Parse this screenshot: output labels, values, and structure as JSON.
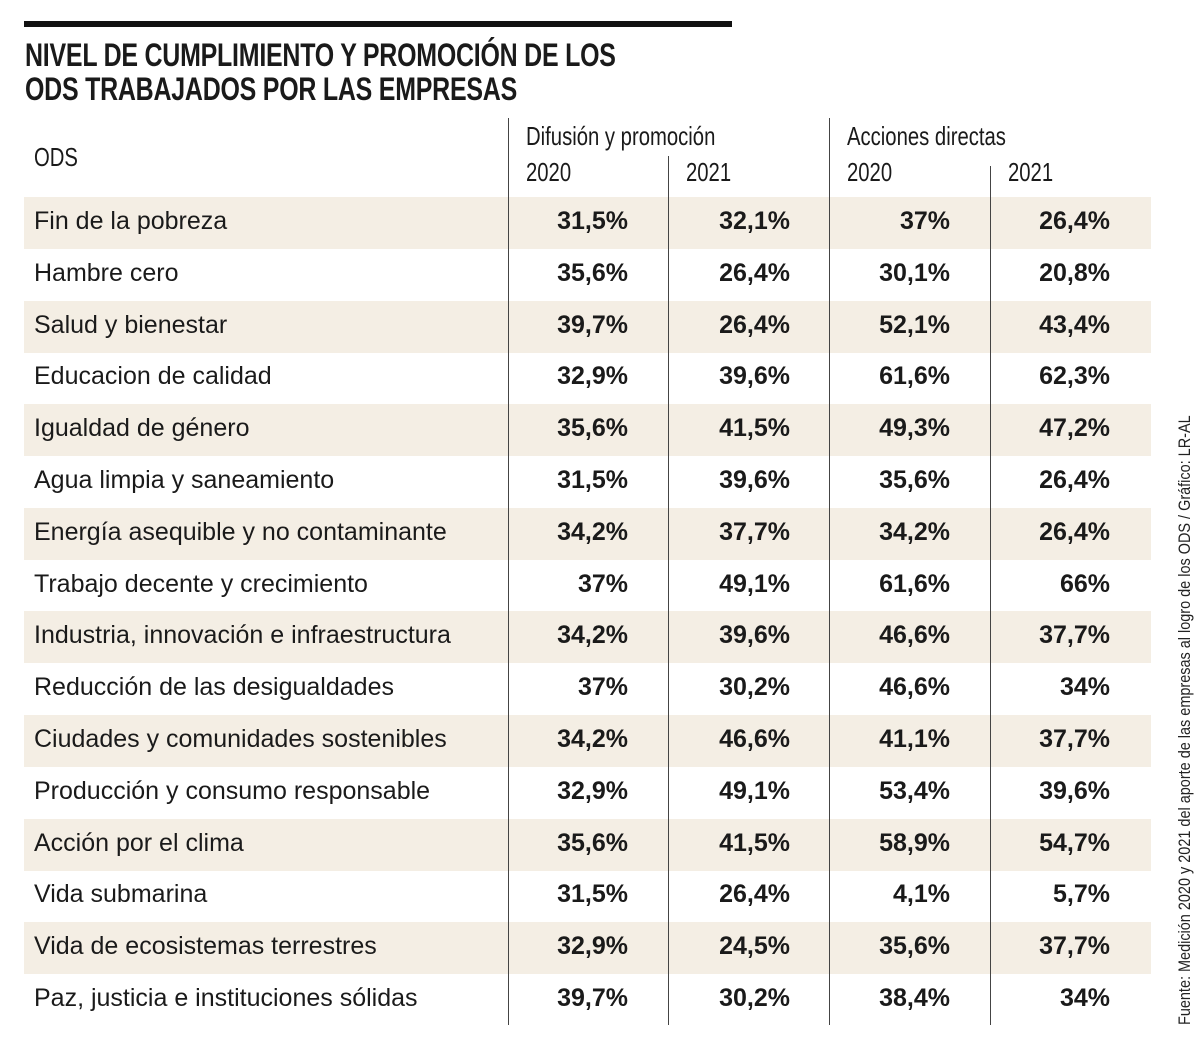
{
  "title": "NIVEL DE CUMPLIMIENTO Y PROMOCIÓN DE LOS ODS TRABAJADOS POR LAS EMPRESAS",
  "title_lines": [
    "NIVEL DE CUMPLIMIENTO Y PROMOCIÓN DE LOS",
    "ODS TRABAJADOS POR LAS EMPRESAS"
  ],
  "source": "Fuente: Medición 2020 y 2021 del aporte de las empresas al logro de los ODS / Gráfico: LR-AL",
  "colors": {
    "row_shade": "#f4eee4",
    "text": "#1a1a1a"
  },
  "chart_data": {
    "type": "table",
    "title": "NIVEL DE CUMPLIMIENTO Y PROMOCIÓN DE LOS ODS TRABAJADOS POR LAS EMPRESAS",
    "row_header": "ODS",
    "groups": [
      {
        "name": "Difusión y promoción",
        "columns": [
          "2020",
          "2021"
        ]
      },
      {
        "name": "Acciones directas",
        "columns": [
          "2020",
          "2021"
        ]
      }
    ],
    "rows": [
      {
        "ods": "Fin de la pobreza",
        "values": [
          "31,5%",
          "32,1%",
          "37%",
          "26,4%"
        ]
      },
      {
        "ods": "Hambre cero",
        "values": [
          "35,6%",
          "26,4%",
          "30,1%",
          "20,8%"
        ]
      },
      {
        "ods": "Salud y bienestar",
        "values": [
          "39,7%",
          "26,4%",
          "52,1%",
          "43,4%"
        ]
      },
      {
        "ods": "Educacion de calidad",
        "values": [
          "32,9%",
          "39,6%",
          "61,6%",
          "62,3%"
        ]
      },
      {
        "ods": "Igualdad de género",
        "values": [
          "35,6%",
          "41,5%",
          "49,3%",
          "47,2%"
        ]
      },
      {
        "ods": "Agua limpia y saneamiento",
        "values": [
          "31,5%",
          "39,6%",
          "35,6%",
          "26,4%"
        ]
      },
      {
        "ods": "Energía asequible y no contaminante",
        "values": [
          "34,2%",
          "37,7%",
          "34,2%",
          "26,4%"
        ]
      },
      {
        "ods": "Trabajo decente y crecimiento",
        "values": [
          "37%",
          "49,1%",
          "61,6%",
          "66%"
        ]
      },
      {
        "ods": "Industria, innovación e infraestructura",
        "values": [
          "34,2%",
          "39,6%",
          "46,6%",
          "37,7%"
        ]
      },
      {
        "ods": "Reducción de las desigualdades",
        "values": [
          "37%",
          "30,2%",
          "46,6%",
          "34%"
        ]
      },
      {
        "ods": "Ciudades y comunidades sostenibles",
        "values": [
          "34,2%",
          "46,6%",
          "41,1%",
          "37,7%"
        ]
      },
      {
        "ods": "Producción y consumo responsable",
        "values": [
          "32,9%",
          "49,1%",
          "53,4%",
          "39,6%"
        ]
      },
      {
        "ods": "Acción por el clima",
        "values": [
          "35,6%",
          "41,5%",
          "58,9%",
          "54,7%"
        ]
      },
      {
        "ods": "Vida submarina",
        "values": [
          "31,5%",
          "26,4%",
          "4,1%",
          "5,7%"
        ]
      },
      {
        "ods": "Vida de ecosistemas terrestres",
        "values": [
          "32,9%",
          "24,5%",
          "35,6%",
          "37,7%"
        ]
      },
      {
        "ods": "Paz, justicia e instituciones sólidas",
        "values": [
          "39,7%",
          "30,2%",
          "38,4%",
          "34%"
        ]
      }
    ]
  }
}
